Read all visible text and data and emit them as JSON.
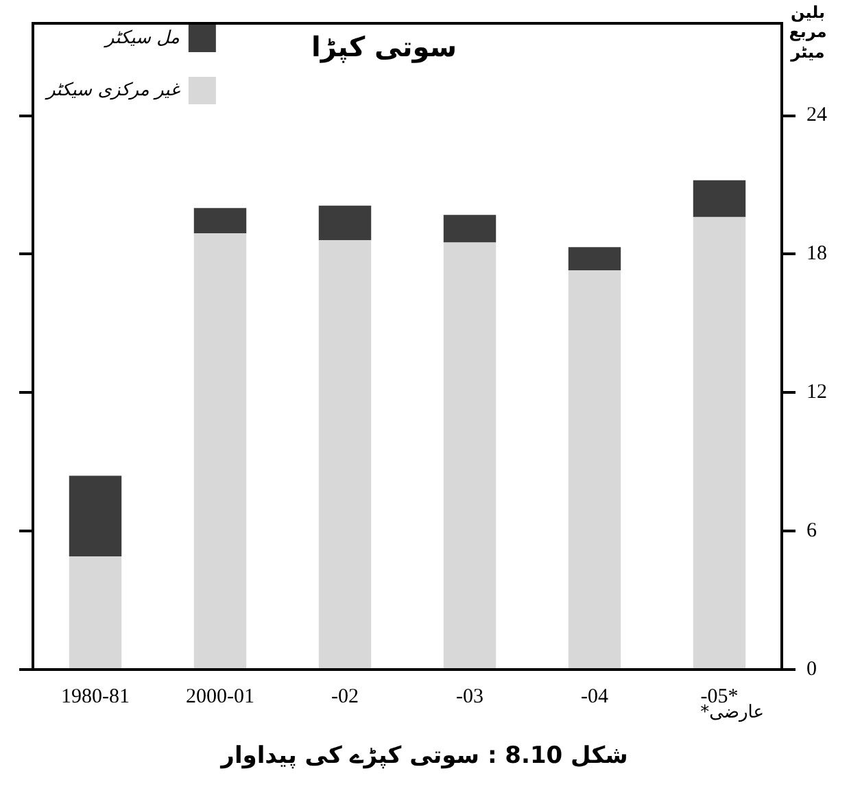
{
  "chart_data": {
    "type": "bar",
    "title": "سوتی کپڑا",
    "ylabel": "بلین مربع میٹر",
    "categories": [
      "1980-81",
      "2000-01",
      "-02",
      "-03",
      "-04",
      "-05*"
    ],
    "stacked": true,
    "series": [
      {
        "name": "غیر مرکزی سیکٹر",
        "color": "#d8d8d8",
        "values": [
          4.9,
          18.9,
          18.6,
          18.5,
          17.3,
          19.6
        ]
      },
      {
        "name": "مل سیکٹر",
        "color": "#3c3c3c",
        "values": [
          3.5,
          1.1,
          1.5,
          1.2,
          1.0,
          1.6
        ]
      }
    ],
    "ylim": [
      0,
      28
    ],
    "yticks": [
      0,
      6,
      12,
      18,
      24
    ],
    "grid": false,
    "legend": "top left",
    "annotations": [
      "عارضی*",
      "شکل 8.10 : سوتی کپڑے کی پیداوار"
    ]
  }
}
